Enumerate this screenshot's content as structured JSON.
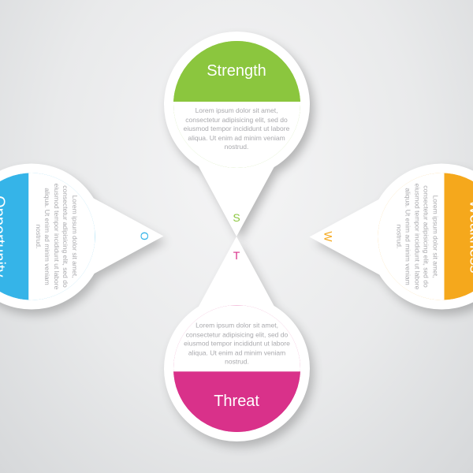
{
  "diagram": {
    "type": "infographic",
    "layout": "four-petal-swot",
    "background_gradient": [
      "#f5f5f6",
      "#e9eaeb",
      "#d6d8da"
    ],
    "paper_color": "#ffffff",
    "shadow_color": "#444444",
    "body_text_color": "#a9a9ad",
    "title_fontsize": 20,
    "letter_fontsize": 14,
    "body_fontsize": 8.5,
    "petal_width": 185,
    "petal_height": 260,
    "ring_inset": 12,
    "lorem": "Lorem ipsum dolor sit amet, consectetur adipisicing elit, sed do eiusmod tempor incididunt ut labore aliqua. Ut enim ad minim veniam nostrud.",
    "petals": [
      {
        "key": "strength",
        "pos": "top",
        "title": "Strength",
        "letter": "S",
        "color": "#8bc63e"
      },
      {
        "key": "weakness",
        "pos": "right",
        "title": "Weakness",
        "letter": "W",
        "color": "#f5a81c"
      },
      {
        "key": "threat",
        "pos": "bottom",
        "title": "Threat",
        "letter": "T",
        "color": "#d9318a"
      },
      {
        "key": "opportunity",
        "pos": "left",
        "title": "Opportunity",
        "letter": "O",
        "color": "#35b4e8"
      }
    ]
  }
}
